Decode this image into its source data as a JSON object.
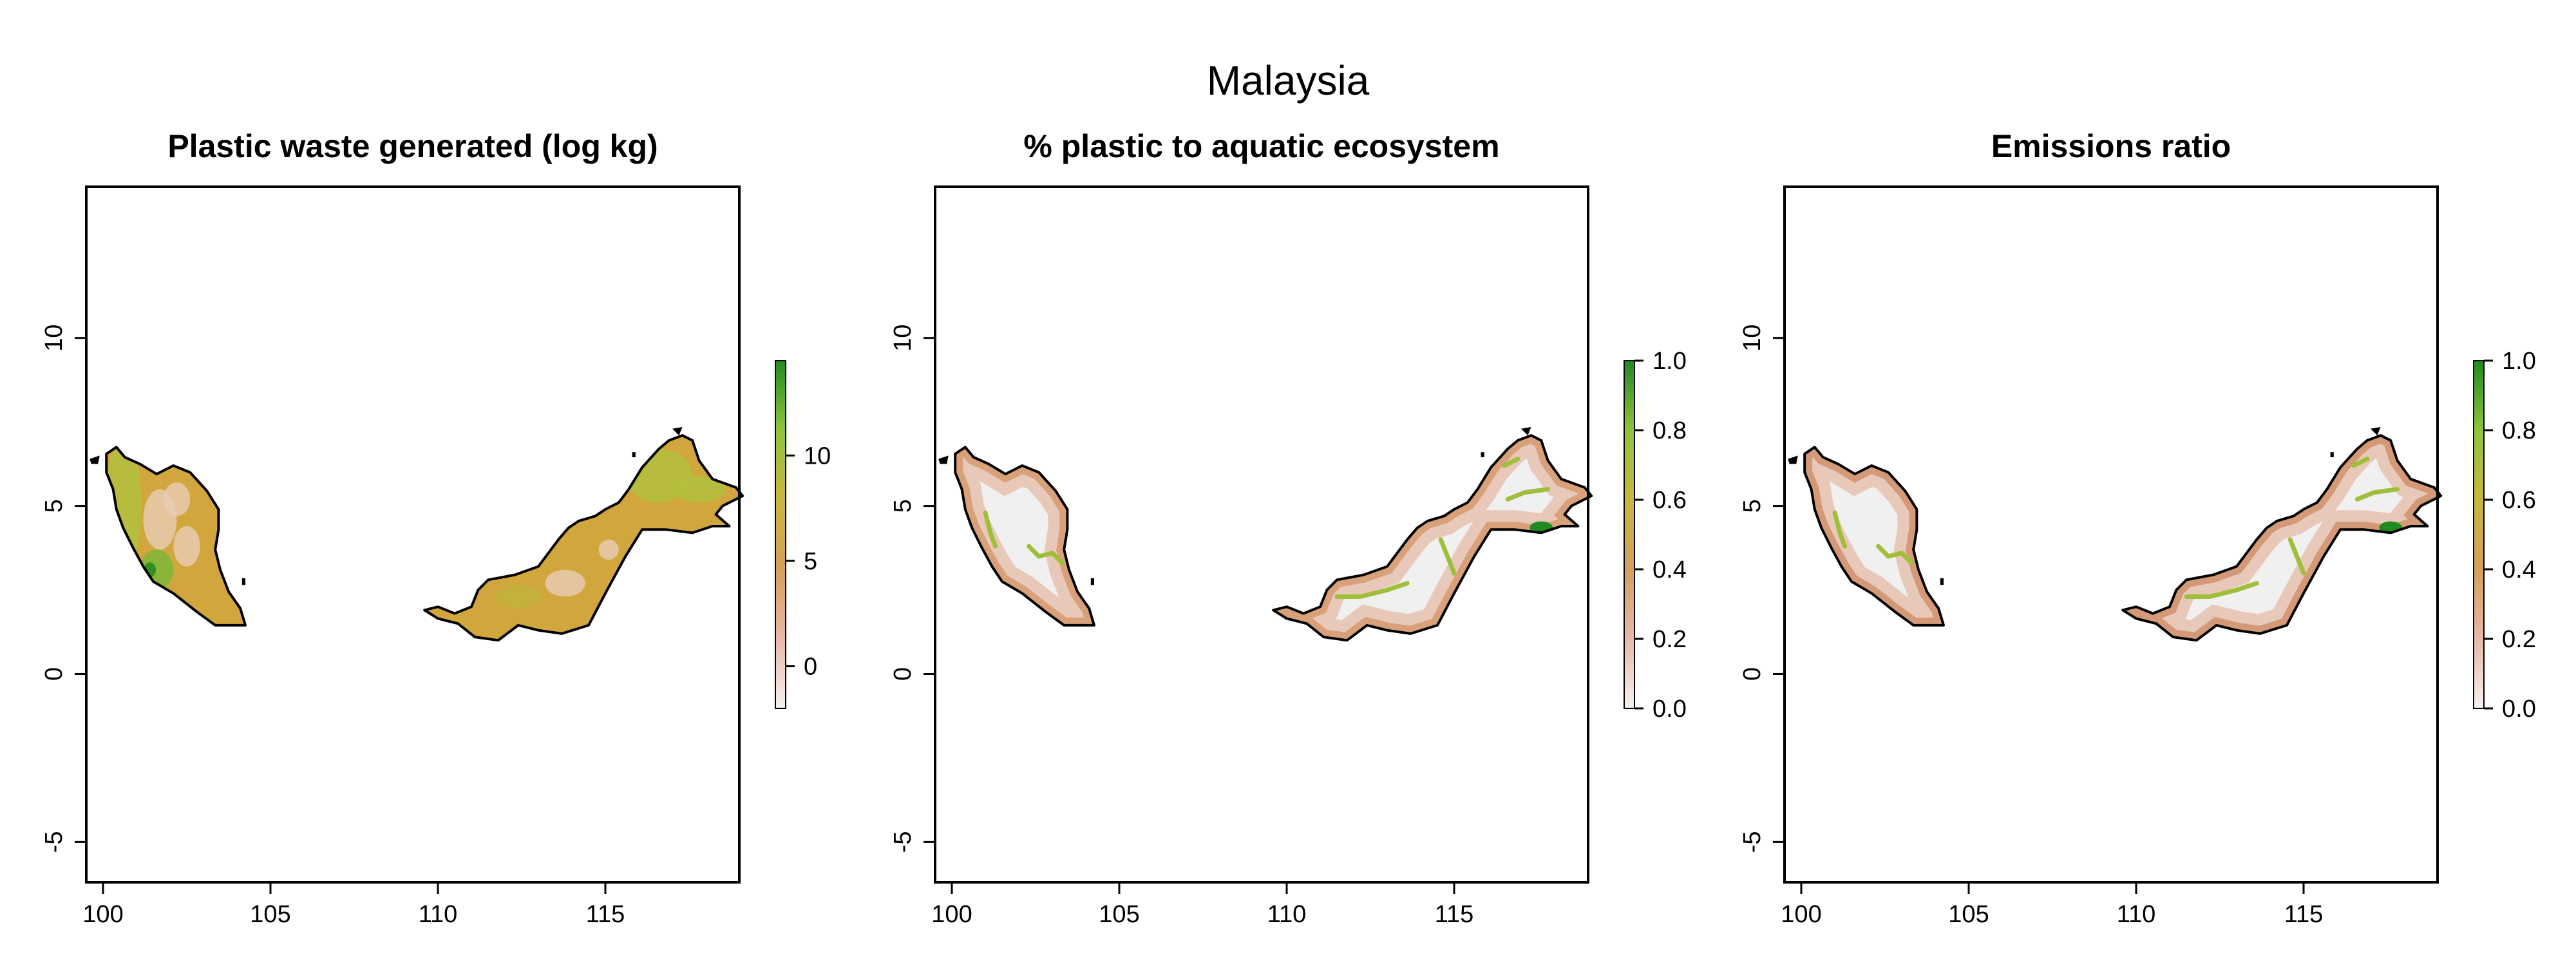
{
  "figure": {
    "title": "Malaysia"
  },
  "panels": [
    {
      "title": "Plastic waste generated (log kg)",
      "x_ticks": [
        "100",
        "105",
        "110",
        "115"
      ],
      "y_ticks": [
        "-5",
        "0",
        "5",
        "10"
      ],
      "colorbar": {
        "range": [
          -2,
          14.5
        ],
        "ticks": [
          "0",
          "5",
          "10"
        ],
        "tick_values": [
          0,
          5,
          10
        ]
      },
      "fill_style": "generated"
    },
    {
      "title": "% plastic to aquatic ecosystem",
      "x_ticks": [
        "100",
        "105",
        "110",
        "115"
      ],
      "y_ticks": [
        "-5",
        "0",
        "5",
        "10"
      ],
      "colorbar": {
        "range": [
          0,
          1
        ],
        "ticks": [
          "0.0",
          "0.2",
          "0.4",
          "0.6",
          "0.8",
          "1.0"
        ],
        "tick_values": [
          0,
          0.2,
          0.4,
          0.6,
          0.8,
          1.0
        ]
      },
      "fill_style": "fraction"
    },
    {
      "title": "Emissions ratio",
      "x_ticks": [
        "100",
        "105",
        "110",
        "115"
      ],
      "y_ticks": [
        "-5",
        "0",
        "5",
        "10"
      ],
      "colorbar": {
        "range": [
          0,
          1
        ],
        "ticks": [
          "0.0",
          "0.2",
          "0.4",
          "0.6",
          "0.8",
          "1.0"
        ],
        "tick_values": [
          0,
          0.2,
          0.4,
          0.6,
          0.8,
          1.0
        ]
      },
      "fill_style": "ratio"
    }
  ],
  "map_extent": {
    "lon": [
      99.5,
      119
    ],
    "lat": [
      -6.2,
      14.5
    ]
  },
  "colors": {
    "ramp": [
      "#f7f0f0",
      "#e8b8a8",
      "#d4a05a",
      "#c9b640",
      "#8fc43a",
      "#1f8a1f"
    ],
    "land_generated": "#d1a63c",
    "land_light": "#f1f0f0",
    "outline": "#000000"
  }
}
